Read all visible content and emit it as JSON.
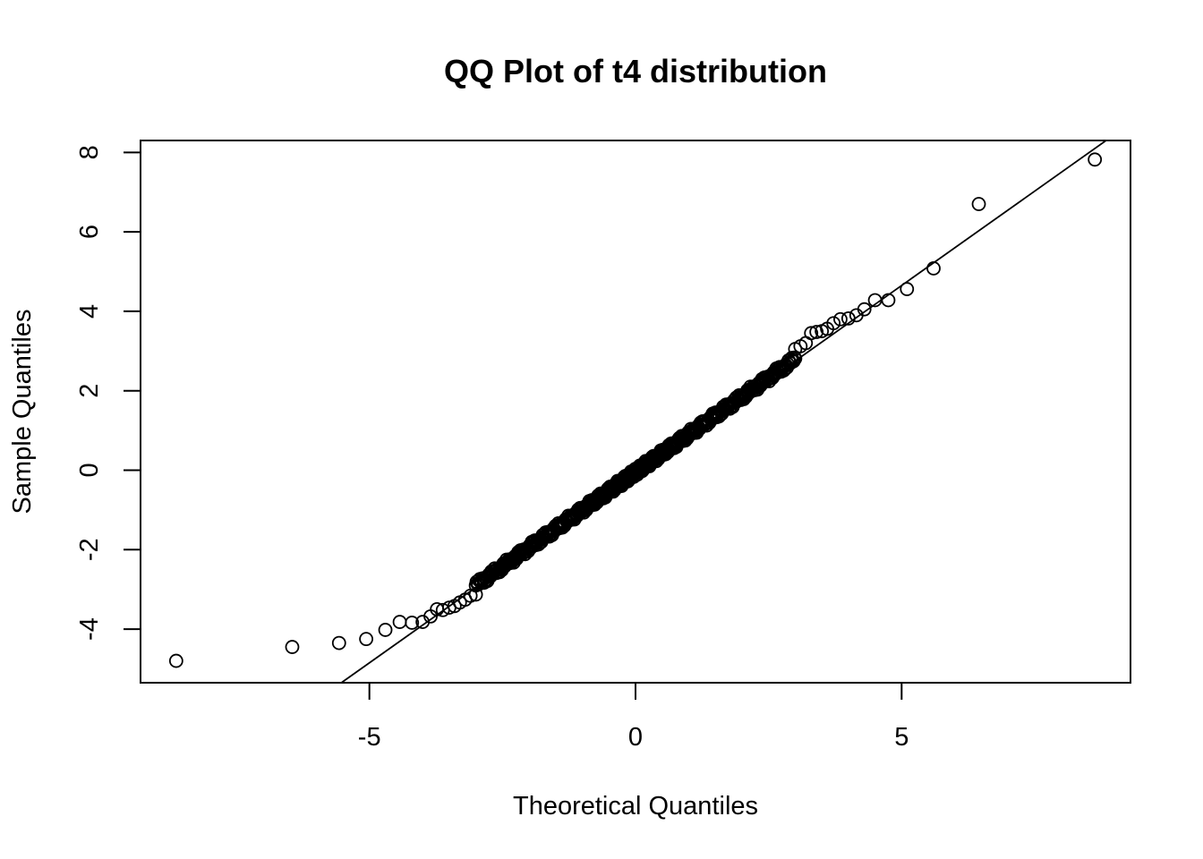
{
  "chart_data": {
    "type": "scatter",
    "title": "QQ Plot of t4 distribution",
    "xlabel": "Theoretical Quantiles",
    "ylabel": "Sample Quantiles",
    "xlim": [
      -9.3,
      9.3
    ],
    "ylim": [
      -5.35,
      8.3
    ],
    "x_ticks": [
      -5,
      0,
      5
    ],
    "y_ticks": [
      -4,
      -2,
      0,
      2,
      4,
      6,
      8
    ],
    "grid": false,
    "reference_line": {
      "slope": 0.95,
      "intercept": -0.1
    },
    "outlier_points": [
      [
        -8.63,
        -4.8
      ],
      [
        -6.45,
        -4.45
      ],
      [
        -5.57,
        -4.35
      ],
      [
        -5.06,
        -4.25
      ],
      [
        -4.7,
        -4.02
      ],
      [
        -4.43,
        -3.82
      ],
      [
        -4.2,
        -3.84
      ],
      [
        -4.0,
        -3.82
      ],
      [
        -3.85,
        -3.68
      ],
      [
        -3.73,
        -3.5
      ],
      [
        -3.62,
        -3.52
      ],
      [
        -3.5,
        -3.46
      ],
      [
        -3.4,
        -3.42
      ],
      [
        -3.3,
        -3.33
      ],
      [
        -3.2,
        -3.26
      ],
      [
        -3.1,
        -3.16
      ],
      [
        -3.0,
        -3.13
      ],
      [
        3.0,
        3.05
      ],
      [
        3.1,
        3.12
      ],
      [
        3.2,
        3.2
      ],
      [
        3.3,
        3.45
      ],
      [
        3.4,
        3.48
      ],
      [
        3.5,
        3.5
      ],
      [
        3.6,
        3.56
      ],
      [
        3.72,
        3.7
      ],
      [
        3.85,
        3.8
      ],
      [
        4.0,
        3.82
      ],
      [
        4.15,
        3.9
      ],
      [
        4.3,
        4.05
      ],
      [
        4.5,
        4.28
      ],
      [
        4.75,
        4.28
      ],
      [
        5.1,
        4.56
      ],
      [
        5.6,
        5.08
      ],
      [
        6.45,
        6.7
      ],
      [
        8.63,
        7.82
      ]
    ],
    "central_points": {
      "x_from": -3.0,
      "x_to": 3.0,
      "count": 520,
      "slope": 0.95,
      "intercept": -0.05
    }
  }
}
